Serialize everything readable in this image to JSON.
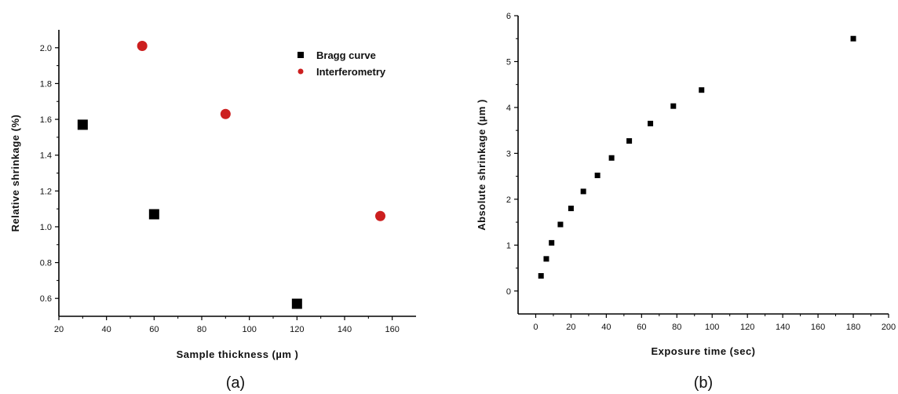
{
  "chart_data": [
    {
      "type": "scatter",
      "panel_label": "(a)",
      "xlabel": "Sample thickness (µm )",
      "ylabel": "Relative shrinkage (%)",
      "xlim": [
        20,
        170
      ],
      "ylim": [
        0.5,
        2.1
      ],
      "xticks": [
        "20",
        "40",
        "60",
        "80",
        "100",
        "120",
        "140",
        "160"
      ],
      "yticks": [
        "0.6",
        "0.8",
        "1.0",
        "1.2",
        "1.4",
        "1.6",
        "1.8",
        "2.0"
      ],
      "grid": false,
      "legend_position": "top-right",
      "series": [
        {
          "name": "Bragg curve",
          "marker": "square",
          "color": "#000000",
          "points": [
            [
              30,
              1.57
            ],
            [
              60,
              1.07
            ],
            [
              120,
              0.57
            ]
          ]
        },
        {
          "name": "Interferometry",
          "marker": "circle",
          "color": "#cc1f1f",
          "points": [
            [
              55,
              2.01
            ],
            [
              90,
              1.63
            ],
            [
              155,
              1.06
            ]
          ]
        }
      ]
    },
    {
      "type": "scatter",
      "panel_label": "(b)",
      "xlabel": "Exposure time (sec)",
      "ylabel": "Absolute shrinkage (µm )",
      "xlim": [
        -10,
        200
      ],
      "ylim": [
        -0.5,
        6
      ],
      "xticks": [
        "0",
        "20",
        "40",
        "60",
        "80",
        "100",
        "120",
        "140",
        "160",
        "180",
        "200"
      ],
      "yticks": [
        "0",
        "1",
        "2",
        "3",
        "4",
        "5",
        "6"
      ],
      "grid": false,
      "series": [
        {
          "name": "",
          "marker": "square",
          "color": "#000000",
          "points": [
            [
              3,
              0.33
            ],
            [
              6,
              0.7
            ],
            [
              9,
              1.05
            ],
            [
              14,
              1.45
            ],
            [
              20,
              1.8
            ],
            [
              27,
              2.17
            ],
            [
              35,
              2.52
            ],
            [
              43,
              2.9
            ],
            [
              53,
              3.27
            ],
            [
              65,
              3.65
            ],
            [
              78,
              4.03
            ],
            [
              94,
              4.38
            ],
            [
              180,
              5.5
            ]
          ]
        }
      ]
    }
  ]
}
